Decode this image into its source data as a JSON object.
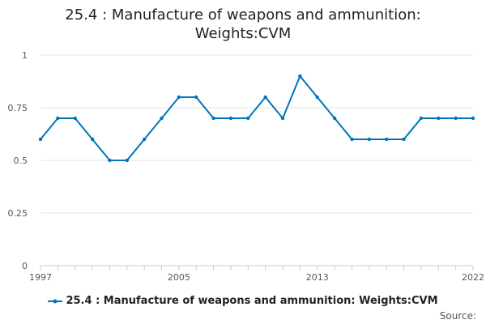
{
  "chart_data": {
    "type": "line",
    "title": "25.4 : Manufacture of weapons and ammunition: Weights:CVM",
    "title_lines": [
      "25.4 : Manufacture of weapons and ammunition:",
      "Weights:CVM"
    ],
    "x": [
      1997,
      1998,
      1999,
      2000,
      2001,
      2002,
      2003,
      2004,
      2005,
      2006,
      2007,
      2008,
      2009,
      2010,
      2011,
      2012,
      2013,
      2014,
      2015,
      2016,
      2017,
      2018,
      2019,
      2020,
      2021,
      2022
    ],
    "x_tick_labels": [
      "1997",
      "2005",
      "2013",
      "2022"
    ],
    "x_tick_values": [
      1997,
      2005,
      2013,
      2022
    ],
    "series": [
      {
        "name": "25.4 : Manufacture of weapons and ammunition: Weights:CVM",
        "values": [
          0.6,
          0.7,
          0.7,
          0.6,
          0.5,
          0.5,
          0.6,
          0.7,
          0.8,
          0.8,
          0.7,
          0.7,
          0.7,
          0.8,
          0.7,
          0.9,
          0.8,
          0.7,
          0.6,
          0.6,
          0.6,
          0.6,
          0.7,
          0.7,
          0.7,
          0.7
        ],
        "color": "#0075b7"
      }
    ],
    "y_tick_labels": [
      "0",
      "0.25",
      "0.5",
      "0.75",
      "1"
    ],
    "y_tick_values": [
      0,
      0.25,
      0.5,
      0.75,
      1
    ],
    "ylim": [
      0,
      1
    ],
    "xlim": [
      1997,
      2022
    ],
    "grid": true,
    "legend_position": "bottom"
  },
  "legend_label": "25.4 : Manufacture of weapons and ammunition: Weights:CVM",
  "source_label": "Source:"
}
